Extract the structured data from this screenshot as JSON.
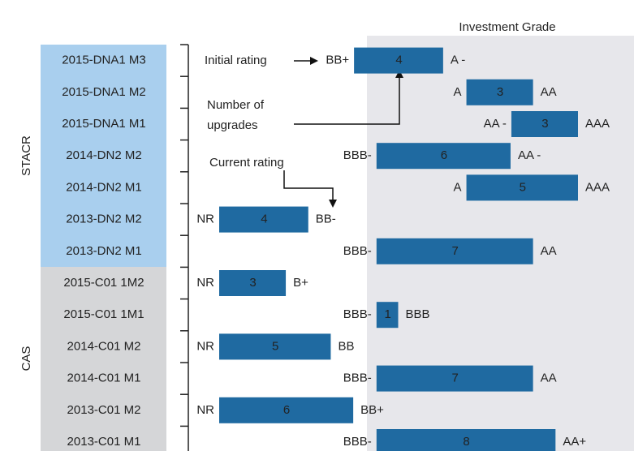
{
  "chart_data": {
    "type": "floating-bar",
    "title": "Investment Grade",
    "groups": [
      "STACR",
      "CAS"
    ],
    "categories": [
      "2015-DNA1 M3",
      "2015-DNA1 M2",
      "2015-DNA1 M1",
      "2014-DN2 M2",
      "2014-DN2 M1",
      "2013-DN2 M2",
      "2013-DN2 M1",
      "2015-C01 1M2",
      "2015-C01 1M1",
      "2014-C01 M2",
      "2014-C01 M1",
      "2013-C01 M2",
      "2013-C01 M1"
    ],
    "x": [
      6,
      11,
      13,
      7,
      11,
      0,
      7,
      0,
      7,
      0,
      7,
      0,
      7
    ],
    "values": [
      4,
      3,
      3,
      6,
      5,
      4,
      7,
      3,
      1,
      5,
      7,
      6,
      8
    ],
    "start_labels": [
      "BB+",
      "A",
      "AA -",
      "BBB-",
      "A",
      "NR",
      "BBB-",
      "NR",
      "BBB-",
      "NR",
      "BBB-",
      "NR",
      "BBB-"
    ],
    "end_labels": [
      "A -",
      "AA",
      "AAA",
      "AA -",
      "AAA",
      "BB-",
      "AA",
      "B+",
      "BBB",
      "BB",
      "AA",
      "BB+",
      "AA+"
    ],
    "color": "#1f6aa1",
    "xlim": [
      0,
      16
    ],
    "annotations": [
      "Initial rating",
      "Number of",
      "upgrades",
      "Current rating"
    ]
  }
}
